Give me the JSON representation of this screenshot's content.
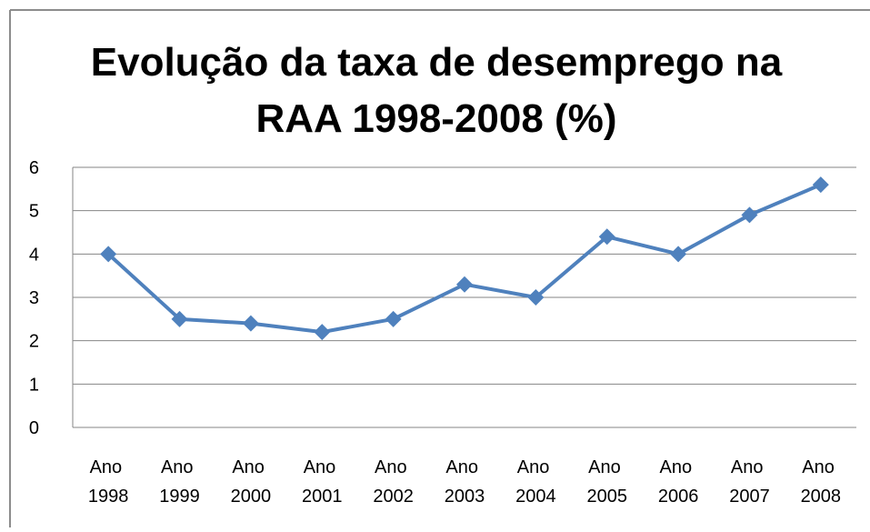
{
  "chart_data": {
    "type": "line",
    "title": "Evolução da taxa de desemprego na RAA 1998-2008 (%)",
    "categories": [
      "Ano 1998",
      "Ano 1999",
      "Ano 2000",
      "Ano 2001",
      "Ano 2002",
      "Ano 2003",
      "Ano 2004",
      "Ano 2005",
      "Ano 2006",
      "Ano 2007",
      "Ano 2008"
    ],
    "series": [
      {
        "color": "#4f81bd",
        "values": [
          4.0,
          2.5,
          2.4,
          2.2,
          2.5,
          3.3,
          3.0,
          4.4,
          4.0,
          4.9,
          5.6
        ]
      }
    ],
    "ylim": [
      0,
      6
    ],
    "yticks": [
      0,
      1,
      2,
      3,
      4,
      5,
      6
    ],
    "grid": true
  }
}
